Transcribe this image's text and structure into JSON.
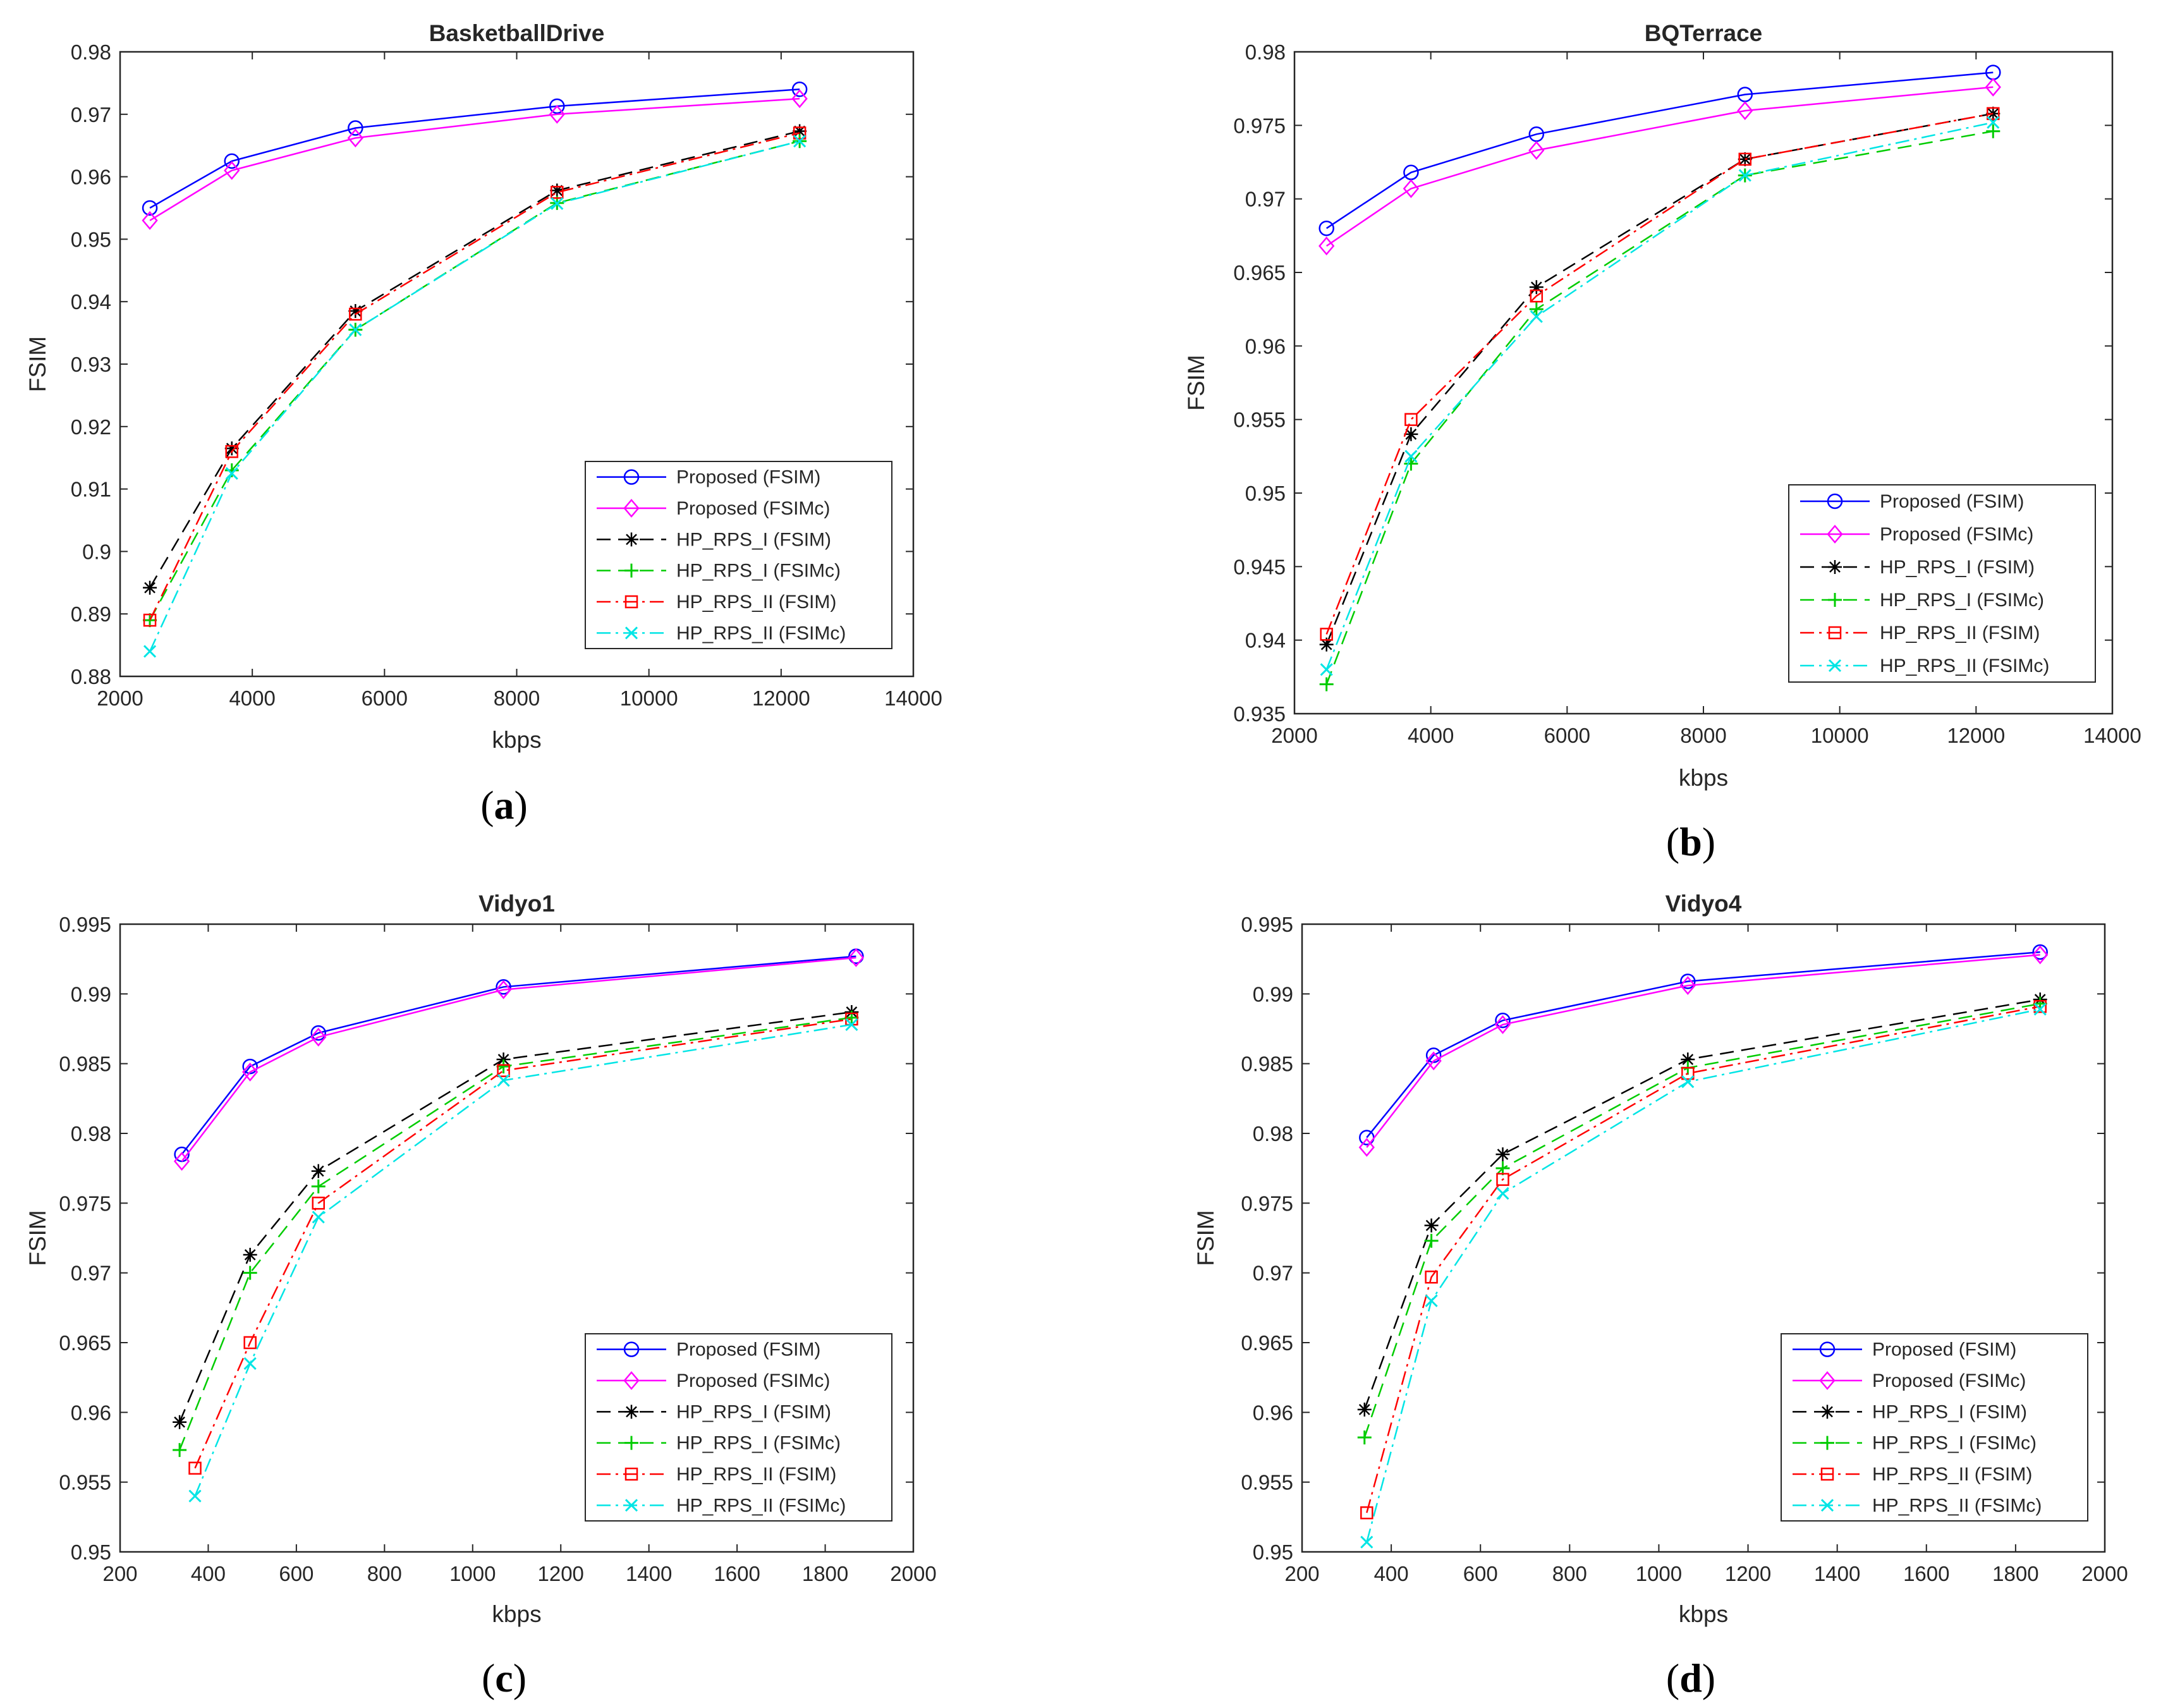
{
  "figure": {
    "colors": {
      "Proposed (FSIM)": "#0000ff",
      "Proposed (FSIMc)": "#ff00ff",
      "HP_RPS_I (FSIM)": "#000000",
      "HP_RPS_I (FSIMc)": "#00cc00",
      "HP_RPS_II (FSIM)": "#ff0000",
      "HP_RPS_II (FSIMc)": "#00e5e5"
    }
  },
  "chart_data": [
    {
      "type": "line",
      "id": "a",
      "caption": "(a)",
      "title": "BasketballDrive",
      "xlabel": "kbps",
      "ylabel": "FSIM",
      "xlim": [
        2000,
        14000
      ],
      "ylim": [
        0.88,
        0.98
      ],
      "xticks": [
        2000,
        4000,
        6000,
        8000,
        10000,
        12000,
        14000
      ],
      "yticks": [
        0.88,
        0.89,
        0.9,
        0.91,
        0.92,
        0.93,
        0.94,
        0.95,
        0.96,
        0.97,
        0.98
      ],
      "xtick_labels": [
        "2000",
        "4000",
        "6000",
        "8000",
        "10000",
        "12000",
        "14000"
      ],
      "ytick_labels": [
        "0.88",
        "0.89",
        "0.9",
        "0.91",
        "0.92",
        "0.93",
        "0.94",
        "0.95",
        "0.96",
        "0.97",
        "0.98"
      ],
      "legend_position": "bottom-right",
      "series": [
        {
          "name": "Proposed (FSIM)",
          "x": [
            2450,
            3690,
            5560,
            8610,
            12280
          ],
          "y": [
            0.955,
            0.9625,
            0.9678,
            0.9713,
            0.974
          ]
        },
        {
          "name": "Proposed (FSIMc)",
          "x": [
            2450,
            3690,
            5560,
            8610,
            12280
          ],
          "y": [
            0.953,
            0.961,
            0.9662,
            0.97,
            0.9725
          ]
        },
        {
          "name": "HP_RPS_I (FSIM)",
          "x": [
            2450,
            3690,
            5560,
            8610,
            12280
          ],
          "y": [
            0.8942,
            0.9165,
            0.9385,
            0.9578,
            0.9673
          ]
        },
        {
          "name": "HP_RPS_I (FSIMc)",
          "x": [
            2450,
            3690,
            5560,
            8610,
            12280
          ],
          "y": [
            0.889,
            0.913,
            0.9355,
            0.9558,
            0.9657
          ]
        },
        {
          "name": "HP_RPS_II (FSIM)",
          "x": [
            2450,
            3690,
            5560,
            8610,
            12280
          ],
          "y": [
            0.889,
            0.916,
            0.938,
            0.9575,
            0.967
          ]
        },
        {
          "name": "HP_RPS_II (FSIMc)",
          "x": [
            2450,
            3690,
            5560,
            8610,
            12280
          ],
          "y": [
            0.884,
            0.9125,
            0.9355,
            0.9557,
            0.9657
          ]
        }
      ]
    },
    {
      "type": "line",
      "id": "b",
      "caption": "(b)",
      "title": "BQTerrace",
      "xlabel": "kbps",
      "ylabel": "FSIM",
      "xlim": [
        2000,
        14000
      ],
      "ylim": [
        0.935,
        0.98
      ],
      "xticks": [
        2000,
        4000,
        6000,
        8000,
        10000,
        12000,
        14000
      ],
      "yticks": [
        0.935,
        0.94,
        0.945,
        0.95,
        0.955,
        0.96,
        0.965,
        0.97,
        0.975,
        0.98
      ],
      "xtick_labels": [
        "2000",
        "4000",
        "6000",
        "8000",
        "10000",
        "12000",
        "14000"
      ],
      "ytick_labels": [
        "0.935",
        "0.94",
        "0.945",
        "0.95",
        "0.955",
        "0.96",
        "0.965",
        "0.97",
        "0.975",
        "0.98"
      ],
      "legend_position": "bottom-right",
      "series": [
        {
          "name": "Proposed (FSIM)",
          "x": [
            2470,
            3710,
            5550,
            8610,
            12250
          ],
          "y": [
            0.968,
            0.9718,
            0.9744,
            0.9771,
            0.9786
          ]
        },
        {
          "name": "Proposed (FSIMc)",
          "x": [
            2470,
            3710,
            5550,
            8610,
            12250
          ],
          "y": [
            0.9668,
            0.9707,
            0.9733,
            0.976,
            0.9776
          ]
        },
        {
          "name": "HP_RPS_I (FSIM)",
          "x": [
            2470,
            3710,
            5550,
            8610,
            12250
          ],
          "y": [
            0.9397,
            0.954,
            0.964,
            0.9727,
            0.9758
          ]
        },
        {
          "name": "HP_RPS_I (FSIMc)",
          "x": [
            2470,
            3710,
            5550,
            8610,
            12250
          ],
          "y": [
            0.937,
            0.952,
            0.9625,
            0.9716,
            0.9746
          ]
        },
        {
          "name": "HP_RPS_II (FSIM)",
          "x": [
            2470,
            3710,
            5550,
            8610,
            12250
          ],
          "y": [
            0.9404,
            0.955,
            0.9634,
            0.9727,
            0.9758
          ]
        },
        {
          "name": "HP_RPS_II (FSIMc)",
          "x": [
            2470,
            3710,
            5550,
            8610,
            12250
          ],
          "y": [
            0.938,
            0.9525,
            0.962,
            0.9716,
            0.9752
          ]
        }
      ]
    },
    {
      "type": "line",
      "id": "c",
      "caption": "(c)",
      "title": "Vidyo1",
      "xlabel": "kbps",
      "ylabel": "FSIM",
      "xlim": [
        200,
        2000
      ],
      "ylim": [
        0.95,
        0.995
      ],
      "xticks": [
        200,
        400,
        600,
        800,
        1000,
        1200,
        1400,
        1600,
        1800,
        2000
      ],
      "yticks": [
        0.95,
        0.955,
        0.96,
        0.965,
        0.97,
        0.975,
        0.98,
        0.985,
        0.99,
        0.995
      ],
      "xtick_labels": [
        "200",
        "400",
        "600",
        "800",
        "1000",
        "1200",
        "1400",
        "1600",
        "1800",
        "2000"
      ],
      "ytick_labels": [
        "0.95",
        "0.955",
        "0.96",
        "0.965",
        "0.97",
        "0.975",
        "0.98",
        "0.985",
        "0.99",
        "0.995"
      ],
      "legend_position": "bottom-right",
      "series": [
        {
          "name": "Proposed (FSIM)",
          "x": [
            340,
            495,
            650,
            1070,
            1870
          ],
          "y": [
            0.9785,
            0.9848,
            0.9872,
            0.9905,
            0.9927
          ]
        },
        {
          "name": "Proposed (FSIMc)",
          "x": [
            340,
            495,
            650,
            1070,
            1870
          ],
          "y": [
            0.978,
            0.9844,
            0.9869,
            0.9903,
            0.9926
          ]
        },
        {
          "name": "HP_RPS_I (FSIM)",
          "x": [
            335,
            495,
            650,
            1070,
            1860
          ],
          "y": [
            0.9593,
            0.9713,
            0.9773,
            0.9853,
            0.9887
          ]
        },
        {
          "name": "HP_RPS_I (FSIMc)",
          "x": [
            335,
            495,
            650,
            1070,
            1860
          ],
          "y": [
            0.9573,
            0.97,
            0.9762,
            0.9848,
            0.9883
          ]
        },
        {
          "name": "HP_RPS_II (FSIM)",
          "x": [
            370,
            495,
            650,
            1070,
            1860
          ],
          "y": [
            0.956,
            0.965,
            0.975,
            0.9845,
            0.9882
          ]
        },
        {
          "name": "HP_RPS_II (FSIMc)",
          "x": [
            370,
            495,
            650,
            1070,
            1860
          ],
          "y": [
            0.954,
            0.9635,
            0.974,
            0.9838,
            0.9878
          ]
        }
      ]
    },
    {
      "type": "line",
      "id": "d",
      "caption": "(d)",
      "title": "Vidyo4",
      "xlabel": "kbps",
      "ylabel": "FSIM",
      "xlim": [
        200,
        2000
      ],
      "ylim": [
        0.95,
        0.995
      ],
      "xticks": [
        200,
        400,
        600,
        800,
        1000,
        1200,
        1400,
        1600,
        1800,
        2000
      ],
      "yticks": [
        0.95,
        0.955,
        0.96,
        0.965,
        0.97,
        0.975,
        0.98,
        0.985,
        0.99,
        0.995
      ],
      "xtick_labels": [
        "200",
        "400",
        "600",
        "800",
        "1000",
        "1200",
        "1400",
        "1600",
        "1800",
        "2000"
      ],
      "ytick_labels": [
        "0.95",
        "0.955",
        "0.96",
        "0.965",
        "0.97",
        "0.975",
        "0.98",
        "0.985",
        "0.99",
        "0.995"
      ],
      "legend_position": "bottom-right",
      "series": [
        {
          "name": "Proposed (FSIM)",
          "x": [
            345,
            495,
            650,
            1065,
            1855
          ],
          "y": [
            0.9797,
            0.9856,
            0.9881,
            0.9909,
            0.993
          ]
        },
        {
          "name": "Proposed (FSIMc)",
          "x": [
            345,
            495,
            650,
            1065,
            1855
          ],
          "y": [
            0.979,
            0.9852,
            0.9878,
            0.9906,
            0.9928
          ]
        },
        {
          "name": "HP_RPS_I (FSIM)",
          "x": [
            340,
            490,
            650,
            1065,
            1855
          ],
          "y": [
            0.9602,
            0.9734,
            0.9785,
            0.9853,
            0.9896
          ]
        },
        {
          "name": "HP_RPS_I (FSIMc)",
          "x": [
            340,
            490,
            650,
            1065,
            1855
          ],
          "y": [
            0.9582,
            0.9723,
            0.9775,
            0.9847,
            0.9893
          ]
        },
        {
          "name": "HP_RPS_II (FSIM)",
          "x": [
            345,
            490,
            650,
            1065,
            1855
          ],
          "y": [
            0.9528,
            0.9697,
            0.9767,
            0.9843,
            0.9891
          ]
        },
        {
          "name": "HP_RPS_II (FSIMc)",
          "x": [
            345,
            490,
            650,
            1065,
            1855
          ],
          "y": [
            0.9507,
            0.968,
            0.9757,
            0.9837,
            0.9889
          ]
        }
      ]
    }
  ]
}
